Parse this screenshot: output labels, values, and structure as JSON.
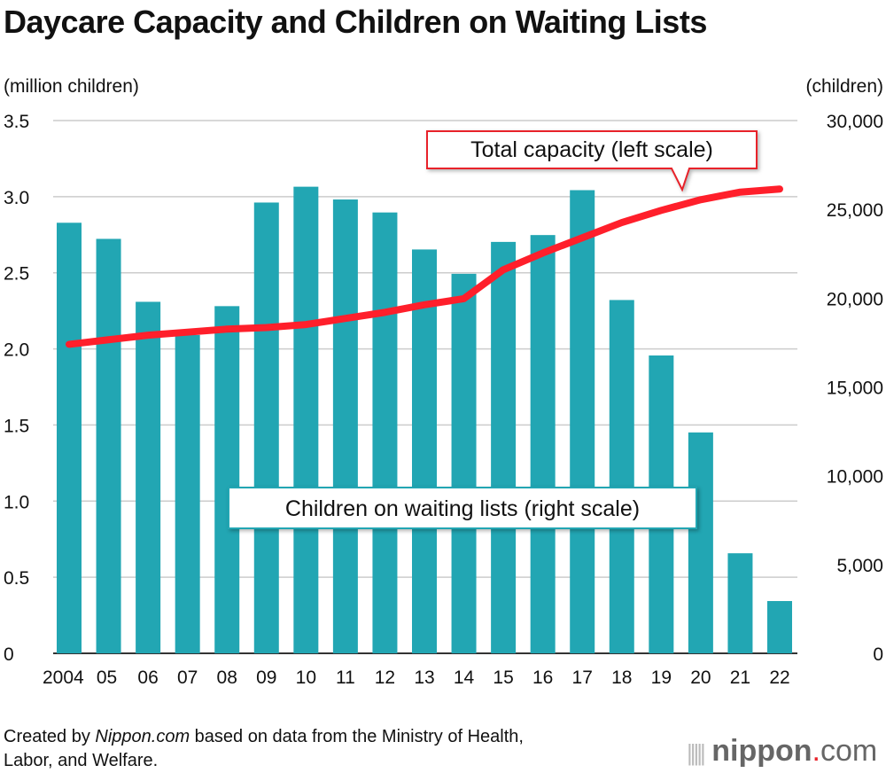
{
  "chart_data": {
    "type": "bar+line",
    "title": "Daycare Capacity and Children on Waiting Lists",
    "left_axis_label": "(million children)",
    "right_axis_label": "(children)",
    "categories": [
      "2004",
      "05",
      "06",
      "07",
      "08",
      "09",
      "10",
      "11",
      "12",
      "13",
      "14",
      "15",
      "16",
      "17",
      "18",
      "19",
      "20",
      "21",
      "22"
    ],
    "left_ylim": [
      0,
      3.5
    ],
    "left_ticks": [
      "0",
      "0.5",
      "1.0",
      "1.5",
      "2.0",
      "2.5",
      "3.0",
      "3.5"
    ],
    "right_ylim": [
      0,
      30000
    ],
    "right_ticks": [
      "0",
      "5,000",
      "10,000",
      "15,000",
      "20,000",
      "25,000",
      "30,000"
    ],
    "grid": true,
    "series": [
      {
        "name": "Children on waiting lists (right scale)",
        "type": "bar",
        "axis": "right",
        "color": "#22a6b3",
        "values": [
          24245,
          23338,
          19794,
          17926,
          19550,
          25384,
          26275,
          25556,
          24825,
          22741,
          21371,
          23167,
          23553,
          26081,
          19895,
          16772,
          12439,
          5634,
          2944
        ]
      },
      {
        "name": "Total capacity (left scale)",
        "type": "line",
        "axis": "left",
        "color": "#ff1f2b",
        "values": [
          2.03,
          2.06,
          2.09,
          2.11,
          2.13,
          2.14,
          2.16,
          2.2,
          2.24,
          2.29,
          2.33,
          2.52,
          2.63,
          2.73,
          2.83,
          2.91,
          2.98,
          3.03,
          3.05
        ]
      }
    ]
  },
  "footer": {
    "prefix": "Created by ",
    "source_site": "Nippon.com",
    "suffix": " based on data from the Ministry of Health,",
    "line2": "Labor, and Welfare."
  },
  "logo": {
    "text_bold": "nippon",
    "dot": ".",
    "text_light": "com"
  }
}
